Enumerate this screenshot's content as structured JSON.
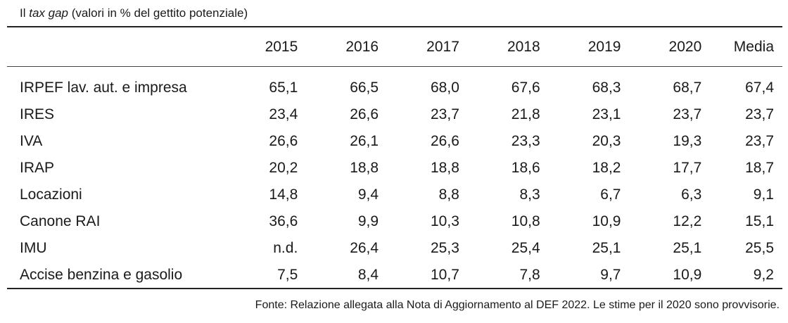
{
  "title": {
    "prefix": "Il ",
    "emphasis": "tax gap",
    "suffix": " (valori in % del gettito potenziale)"
  },
  "table": {
    "headers": [
      "",
      "2015",
      "2016",
      "2017",
      "2018",
      "2019",
      "2020",
      "Media"
    ],
    "rows": [
      [
        "IRPEF lav. aut. e impresa",
        "65,1",
        "66,5",
        "68,0",
        "67,6",
        "68,3",
        "68,7",
        "67,4"
      ],
      [
        "IRES",
        "23,4",
        "26,6",
        "23,7",
        "21,8",
        "23,1",
        "23,7",
        "23,7"
      ],
      [
        "IVA",
        "26,6",
        "26,1",
        "26,6",
        "23,3",
        "20,3",
        "19,3",
        "23,7"
      ],
      [
        "IRAP",
        "20,2",
        "18,8",
        "18,8",
        "18,6",
        "18,2",
        "17,7",
        "18,7"
      ],
      [
        "Locazioni",
        "14,8",
        "9,4",
        "8,8",
        "8,3",
        "6,7",
        "6,3",
        "9,1"
      ],
      [
        "Canone RAI",
        "36,6",
        "9,9",
        "10,3",
        "10,8",
        "10,9",
        "12,2",
        "15,1"
      ],
      [
        "IMU",
        "n.d.",
        "26,4",
        "25,3",
        "25,4",
        "25,1",
        "25,1",
        "25,5"
      ],
      [
        "Accise benzina e gasolio",
        "7,5",
        "8,4",
        "10,7",
        "7,8",
        "9,7",
        "10,9",
        "9,2"
      ]
    ]
  },
  "source": "Fonte: Relazione allegata alla Nota di Aggiornamento al DEF 2022. Le stime per il 2020 sono provvisorie."
}
